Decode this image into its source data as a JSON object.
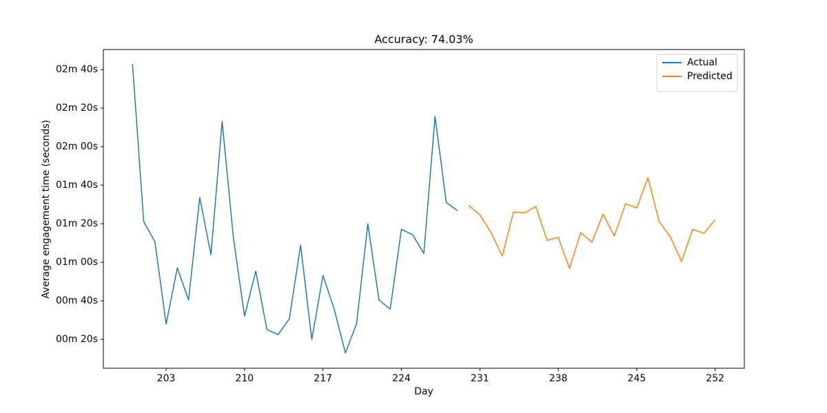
{
  "chart_data": {
    "type": "line",
    "title": "Accuracy: 74.03%",
    "x_label": "Day",
    "y_label": "Average engagement time (seconds)",
    "xlim": [
      197.4,
      254.6
    ],
    "ylim": [
      5,
      170.4
    ],
    "xticks": [
      203,
      210,
      217,
      224,
      231,
      238,
      245,
      252
    ],
    "yticks": [
      {
        "value": 20,
        "label": "00m 20s"
      },
      {
        "value": 40,
        "label": "00m 40s"
      },
      {
        "value": 60,
        "label": "01m 00s"
      },
      {
        "value": 80,
        "label": "01m 20s"
      },
      {
        "value": 100,
        "label": "01m 40s"
      },
      {
        "value": 120,
        "label": "02m 00s"
      },
      {
        "value": 140,
        "label": "02m 20s"
      },
      {
        "value": 160,
        "label": "02m 40s"
      }
    ],
    "legend": "upper right",
    "series": [
      {
        "name": "Actual",
        "color": "#1f77b4",
        "x": [
          200,
          201,
          202,
          203,
          204,
          205,
          206,
          207,
          208,
          209,
          210,
          211,
          212,
          213,
          214,
          215,
          216,
          217,
          218,
          219,
          220,
          221,
          222,
          223,
          224,
          225,
          226,
          227,
          228,
          229
        ],
        "values": [
          162.9,
          81.1,
          70.7,
          27.9,
          57.1,
          40.4,
          93.6,
          63.9,
          133.2,
          72.9,
          32.1,
          55.4,
          25,
          22.5,
          30.7,
          68.9,
          20,
          53.2,
          35.7,
          12.9,
          28.2,
          80,
          40.4,
          35.7,
          77.1,
          74.3,
          64.6,
          135.7,
          91.1,
          86.8
        ]
      },
      {
        "name": "Predicted",
        "color": "#ff7f0e",
        "x": [
          230,
          231,
          232,
          233,
          234,
          235,
          236,
          237,
          238,
          239,
          240,
          241,
          242,
          243,
          244,
          245,
          246,
          247,
          248,
          249,
          250,
          251,
          252
        ],
        "values": [
          89.6,
          84.6,
          75.4,
          63.2,
          86.1,
          85.7,
          88.9,
          71.4,
          72.9,
          56.8,
          75.4,
          70.4,
          85,
          73.6,
          90.4,
          88.2,
          103.9,
          81.1,
          73.2,
          60.4,
          77.1,
          75,
          82.1
        ]
      }
    ]
  }
}
